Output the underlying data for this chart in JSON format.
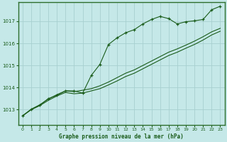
{
  "title": "Graphe pression niveau de la mer (hPa)",
  "bg_color": "#c5e8e8",
  "grid_color": "#a8d0d0",
  "line_color": "#1a5c1a",
  "border_color": "#2d6e2d",
  "xlim": [
    -0.5,
    23.5
  ],
  "ylim": [
    1012.3,
    1017.85
  ],
  "yticks": [
    1013,
    1014,
    1015,
    1016,
    1017
  ],
  "xticks": [
    0,
    1,
    2,
    3,
    4,
    5,
    6,
    7,
    8,
    9,
    10,
    11,
    12,
    13,
    14,
    15,
    16,
    17,
    18,
    19,
    20,
    21,
    22,
    23
  ],
  "series1_x": [
    0,
    1,
    2,
    3,
    4,
    5,
    6,
    7,
    8,
    9,
    10,
    11,
    12,
    13,
    14,
    15,
    16,
    17,
    18,
    19,
    20,
    21,
    22,
    23
  ],
  "series1_y": [
    1012.72,
    1013.0,
    1013.2,
    1013.5,
    1013.65,
    1013.85,
    1013.85,
    1013.75,
    1014.55,
    1015.05,
    1015.95,
    1016.25,
    1016.48,
    1016.62,
    1016.88,
    1017.08,
    1017.22,
    1017.12,
    1016.88,
    1016.98,
    1017.02,
    1017.08,
    1017.52,
    1017.68
  ],
  "series2_y": [
    1012.72,
    1013.0,
    1013.18,
    1013.42,
    1013.62,
    1013.78,
    1013.72,
    1013.75,
    1013.85,
    1013.95,
    1014.12,
    1014.3,
    1014.5,
    1014.65,
    1014.85,
    1015.05,
    1015.25,
    1015.45,
    1015.6,
    1015.78,
    1015.95,
    1016.15,
    1016.38,
    1016.55
  ],
  "series3_y": [
    1012.72,
    1013.02,
    1013.22,
    1013.48,
    1013.68,
    1013.85,
    1013.82,
    1013.88,
    1013.95,
    1014.08,
    1014.25,
    1014.45,
    1014.65,
    1014.8,
    1015.0,
    1015.2,
    1015.4,
    1015.6,
    1015.75,
    1015.92,
    1016.1,
    1016.3,
    1016.52,
    1016.68
  ]
}
